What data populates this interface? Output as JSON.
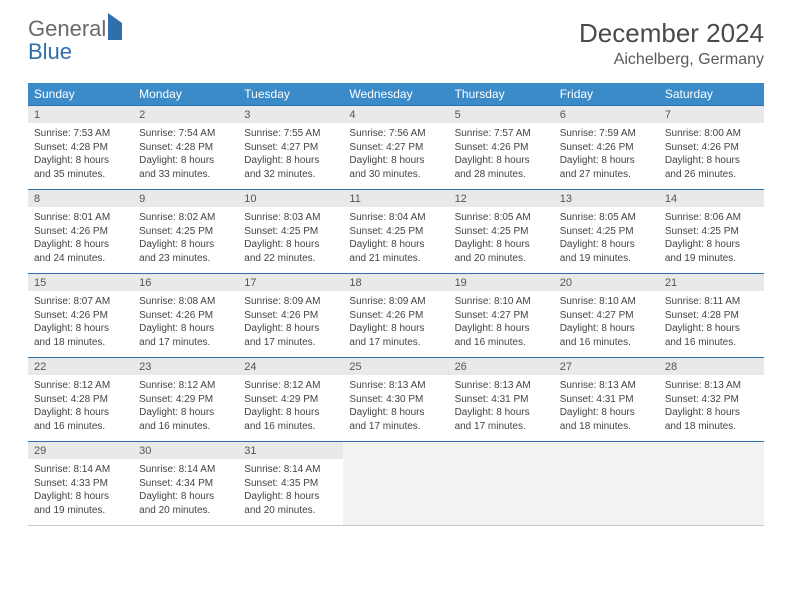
{
  "logo": {
    "general": "General",
    "blue": "Blue"
  },
  "title": "December 2024",
  "location": "Aichelberg, Germany",
  "colors": {
    "header_bg": "#3b8bc9",
    "header_text": "#ffffff",
    "daynum_bg": "#e9e9e9",
    "border_top": "#2f6fab",
    "logo_gray": "#6a6a6a",
    "logo_blue": "#2f6fab"
  },
  "dow": [
    "Sunday",
    "Monday",
    "Tuesday",
    "Wednesday",
    "Thursday",
    "Friday",
    "Saturday"
  ],
  "weeks": [
    {
      "nums": [
        "1",
        "2",
        "3",
        "4",
        "5",
        "6",
        "7"
      ],
      "cells": [
        {
          "sunrise": "Sunrise: 7:53 AM",
          "sunset": "Sunset: 4:28 PM",
          "day1": "Daylight: 8 hours",
          "day2": "and 35 minutes."
        },
        {
          "sunrise": "Sunrise: 7:54 AM",
          "sunset": "Sunset: 4:28 PM",
          "day1": "Daylight: 8 hours",
          "day2": "and 33 minutes."
        },
        {
          "sunrise": "Sunrise: 7:55 AM",
          "sunset": "Sunset: 4:27 PM",
          "day1": "Daylight: 8 hours",
          "day2": "and 32 minutes."
        },
        {
          "sunrise": "Sunrise: 7:56 AM",
          "sunset": "Sunset: 4:27 PM",
          "day1": "Daylight: 8 hours",
          "day2": "and 30 minutes."
        },
        {
          "sunrise": "Sunrise: 7:57 AM",
          "sunset": "Sunset: 4:26 PM",
          "day1": "Daylight: 8 hours",
          "day2": "and 28 minutes."
        },
        {
          "sunrise": "Sunrise: 7:59 AM",
          "sunset": "Sunset: 4:26 PM",
          "day1": "Daylight: 8 hours",
          "day2": "and 27 minutes."
        },
        {
          "sunrise": "Sunrise: 8:00 AM",
          "sunset": "Sunset: 4:26 PM",
          "day1": "Daylight: 8 hours",
          "day2": "and 26 minutes."
        }
      ]
    },
    {
      "nums": [
        "8",
        "9",
        "10",
        "11",
        "12",
        "13",
        "14"
      ],
      "cells": [
        {
          "sunrise": "Sunrise: 8:01 AM",
          "sunset": "Sunset: 4:26 PM",
          "day1": "Daylight: 8 hours",
          "day2": "and 24 minutes."
        },
        {
          "sunrise": "Sunrise: 8:02 AM",
          "sunset": "Sunset: 4:25 PM",
          "day1": "Daylight: 8 hours",
          "day2": "and 23 minutes."
        },
        {
          "sunrise": "Sunrise: 8:03 AM",
          "sunset": "Sunset: 4:25 PM",
          "day1": "Daylight: 8 hours",
          "day2": "and 22 minutes."
        },
        {
          "sunrise": "Sunrise: 8:04 AM",
          "sunset": "Sunset: 4:25 PM",
          "day1": "Daylight: 8 hours",
          "day2": "and 21 minutes."
        },
        {
          "sunrise": "Sunrise: 8:05 AM",
          "sunset": "Sunset: 4:25 PM",
          "day1": "Daylight: 8 hours",
          "day2": "and 20 minutes."
        },
        {
          "sunrise": "Sunrise: 8:05 AM",
          "sunset": "Sunset: 4:25 PM",
          "day1": "Daylight: 8 hours",
          "day2": "and 19 minutes."
        },
        {
          "sunrise": "Sunrise: 8:06 AM",
          "sunset": "Sunset: 4:25 PM",
          "day1": "Daylight: 8 hours",
          "day2": "and 19 minutes."
        }
      ]
    },
    {
      "nums": [
        "15",
        "16",
        "17",
        "18",
        "19",
        "20",
        "21"
      ],
      "cells": [
        {
          "sunrise": "Sunrise: 8:07 AM",
          "sunset": "Sunset: 4:26 PM",
          "day1": "Daylight: 8 hours",
          "day2": "and 18 minutes."
        },
        {
          "sunrise": "Sunrise: 8:08 AM",
          "sunset": "Sunset: 4:26 PM",
          "day1": "Daylight: 8 hours",
          "day2": "and 17 minutes."
        },
        {
          "sunrise": "Sunrise: 8:09 AM",
          "sunset": "Sunset: 4:26 PM",
          "day1": "Daylight: 8 hours",
          "day2": "and 17 minutes."
        },
        {
          "sunrise": "Sunrise: 8:09 AM",
          "sunset": "Sunset: 4:26 PM",
          "day1": "Daylight: 8 hours",
          "day2": "and 17 minutes."
        },
        {
          "sunrise": "Sunrise: 8:10 AM",
          "sunset": "Sunset: 4:27 PM",
          "day1": "Daylight: 8 hours",
          "day2": "and 16 minutes."
        },
        {
          "sunrise": "Sunrise: 8:10 AM",
          "sunset": "Sunset: 4:27 PM",
          "day1": "Daylight: 8 hours",
          "day2": "and 16 minutes."
        },
        {
          "sunrise": "Sunrise: 8:11 AM",
          "sunset": "Sunset: 4:28 PM",
          "day1": "Daylight: 8 hours",
          "day2": "and 16 minutes."
        }
      ]
    },
    {
      "nums": [
        "22",
        "23",
        "24",
        "25",
        "26",
        "27",
        "28"
      ],
      "cells": [
        {
          "sunrise": "Sunrise: 8:12 AM",
          "sunset": "Sunset: 4:28 PM",
          "day1": "Daylight: 8 hours",
          "day2": "and 16 minutes."
        },
        {
          "sunrise": "Sunrise: 8:12 AM",
          "sunset": "Sunset: 4:29 PM",
          "day1": "Daylight: 8 hours",
          "day2": "and 16 minutes."
        },
        {
          "sunrise": "Sunrise: 8:12 AM",
          "sunset": "Sunset: 4:29 PM",
          "day1": "Daylight: 8 hours",
          "day2": "and 16 minutes."
        },
        {
          "sunrise": "Sunrise: 8:13 AM",
          "sunset": "Sunset: 4:30 PM",
          "day1": "Daylight: 8 hours",
          "day2": "and 17 minutes."
        },
        {
          "sunrise": "Sunrise: 8:13 AM",
          "sunset": "Sunset: 4:31 PM",
          "day1": "Daylight: 8 hours",
          "day2": "and 17 minutes."
        },
        {
          "sunrise": "Sunrise: 8:13 AM",
          "sunset": "Sunset: 4:31 PM",
          "day1": "Daylight: 8 hours",
          "day2": "and 18 minutes."
        },
        {
          "sunrise": "Sunrise: 8:13 AM",
          "sunset": "Sunset: 4:32 PM",
          "day1": "Daylight: 8 hours",
          "day2": "and 18 minutes."
        }
      ]
    },
    {
      "nums": [
        "29",
        "30",
        "31",
        "",
        "",
        "",
        ""
      ],
      "cells": [
        {
          "sunrise": "Sunrise: 8:14 AM",
          "sunset": "Sunset: 4:33 PM",
          "day1": "Daylight: 8 hours",
          "day2": "and 19 minutes."
        },
        {
          "sunrise": "Sunrise: 8:14 AM",
          "sunset": "Sunset: 4:34 PM",
          "day1": "Daylight: 8 hours",
          "day2": "and 20 minutes."
        },
        {
          "sunrise": "Sunrise: 8:14 AM",
          "sunset": "Sunset: 4:35 PM",
          "day1": "Daylight: 8 hours",
          "day2": "and 20 minutes."
        },
        null,
        null,
        null,
        null
      ]
    }
  ]
}
